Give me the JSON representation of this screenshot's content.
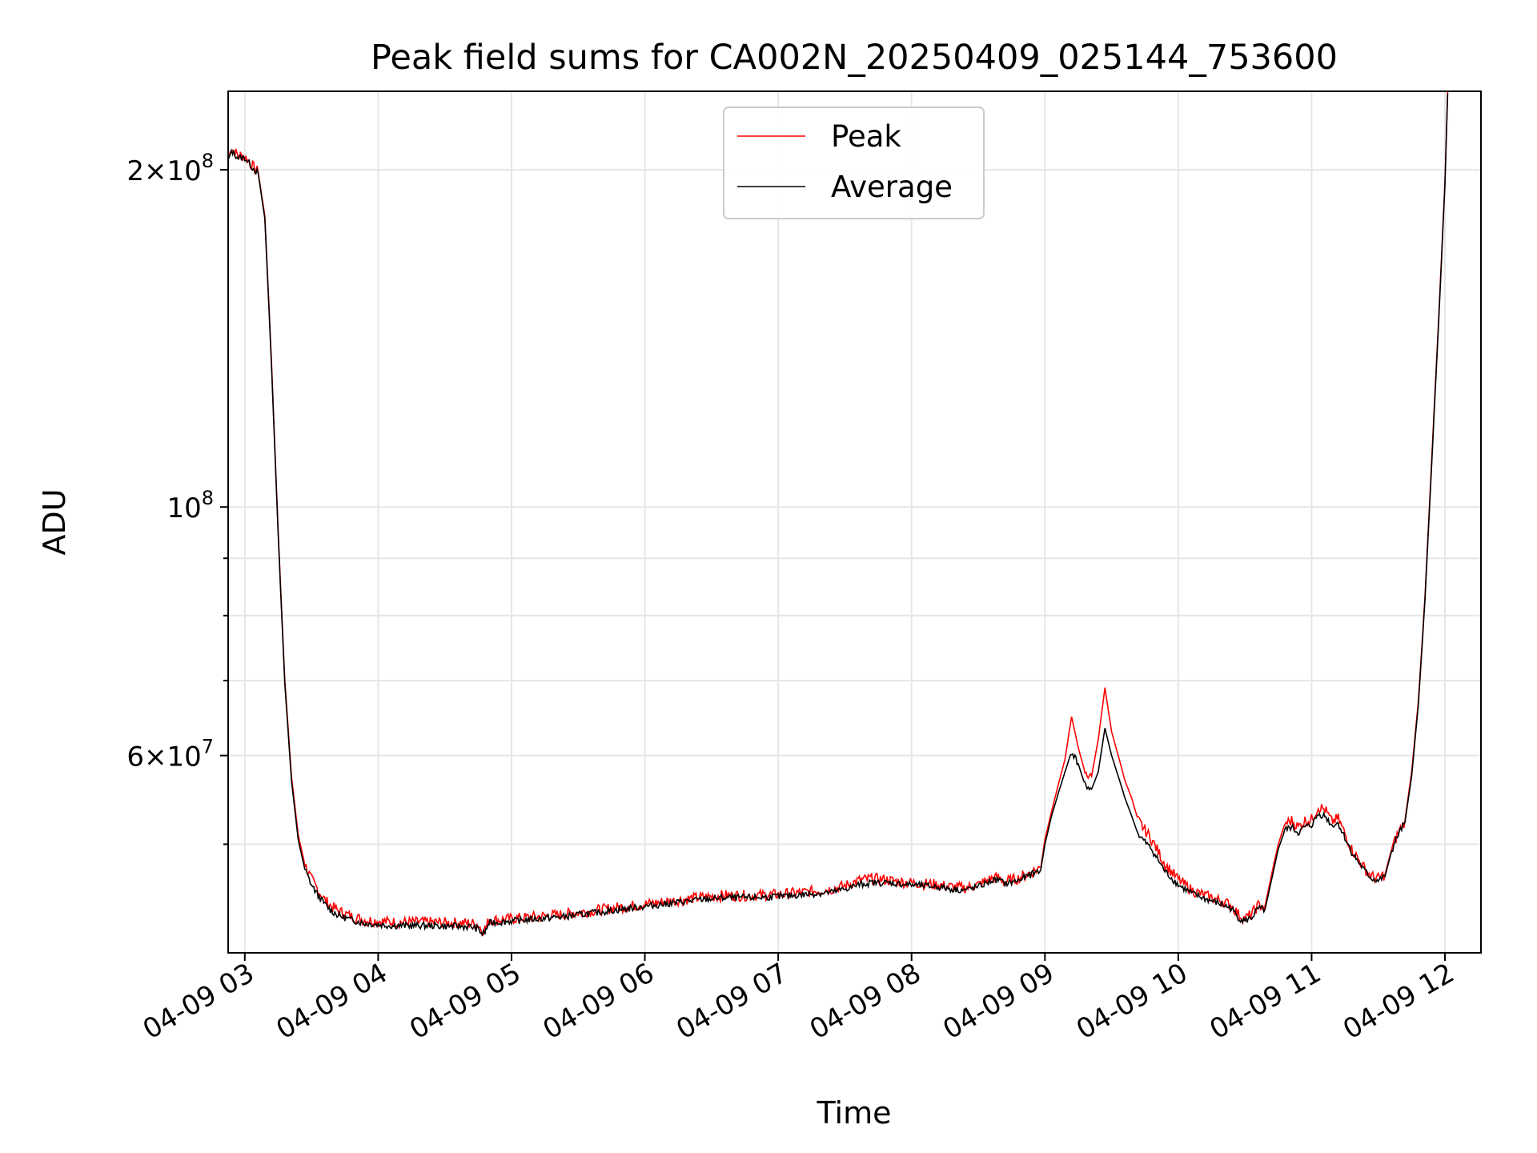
{
  "chart_data": {
    "type": "line",
    "title": "Peak field sums for CA002N_20250409_025144_753600",
    "xlabel": "Time",
    "ylabel": "ADU",
    "yscale": "log",
    "ylim": [
      40000000,
      235000000
    ],
    "xlim_hours": [
      2.875,
      12.27
    ],
    "grid": true,
    "legend_position": "upper center",
    "y_tick_labels": [
      {
        "value": 200000000,
        "mantissa": "2×10",
        "exponent": "8"
      },
      {
        "value": 100000000,
        "mantissa": "10",
        "exponent": "8"
      },
      {
        "value": 60000000,
        "mantissa": "6×10",
        "exponent": "7"
      }
    ],
    "y_minor_ticks": [
      50000000,
      70000000,
      80000000,
      90000000
    ],
    "x_ticks": [
      {
        "hour": 3,
        "label": "04-09 03"
      },
      {
        "hour": 4,
        "label": "04-09 04"
      },
      {
        "hour": 5,
        "label": "04-09 05"
      },
      {
        "hour": 6,
        "label": "04-09 06"
      },
      {
        "hour": 7,
        "label": "04-09 07"
      },
      {
        "hour": 8,
        "label": "04-09 08"
      },
      {
        "hour": 9,
        "label": "04-09 09"
      },
      {
        "hour": 10,
        "label": "04-09 10"
      },
      {
        "hour": 11,
        "label": "04-09 11"
      },
      {
        "hour": 12,
        "label": "04-09 12"
      }
    ],
    "series": [
      {
        "name": "Peak",
        "color": "#ff0000",
        "x_hours": [
          2.875,
          2.9,
          2.95,
          3.0,
          3.05,
          3.1,
          3.15,
          3.2,
          3.25,
          3.3,
          3.35,
          3.4,
          3.45,
          3.5,
          3.55,
          3.6,
          3.65,
          3.7,
          3.8,
          3.9,
          4.0,
          4.1,
          4.2,
          4.3,
          4.4,
          4.5,
          4.6,
          4.7,
          4.75,
          4.78,
          4.8,
          4.83,
          4.86,
          4.9,
          5.0,
          5.2,
          5.4,
          5.6,
          5.8,
          6.0,
          6.2,
          6.4,
          6.6,
          6.8,
          7.0,
          7.2,
          7.4,
          7.5,
          7.6,
          7.7,
          7.8,
          7.9,
          8.0,
          8.1,
          8.2,
          8.3,
          8.4,
          8.5,
          8.6,
          8.65,
          8.7,
          8.8,
          8.9,
          8.97,
          9.0,
          9.05,
          9.1,
          9.15,
          9.2,
          9.25,
          9.3,
          9.35,
          9.4,
          9.45,
          9.5,
          9.55,
          9.6,
          9.65,
          9.7,
          9.8,
          9.9,
          10.0,
          10.1,
          10.2,
          10.3,
          10.4,
          10.45,
          10.5,
          10.55,
          10.6,
          10.65,
          10.7,
          10.75,
          10.8,
          10.85,
          10.9,
          10.95,
          11.0,
          11.05,
          11.1,
          11.15,
          11.2,
          11.3,
          11.4,
          11.45,
          11.5,
          11.55,
          11.6,
          11.65,
          11.7,
          11.75,
          11.8,
          11.85,
          11.9,
          11.95,
          12.0,
          12.02
        ],
        "values": [
          205000000,
          209000000,
          206000000,
          205500000,
          202000000,
          199000000,
          182000000,
          135000000,
          95000000,
          70000000,
          57500000,
          51000000,
          48000000,
          46500000,
          45500000,
          44600000,
          44000000,
          43600000,
          43100000,
          42800000,
          42700000,
          42600000,
          42600000,
          42600000,
          42600000,
          42550000,
          42550000,
          42500000,
          42400000,
          41900000,
          42000000,
          42700000,
          42800000,
          42800000,
          42900000,
          43100000,
          43300000,
          43600000,
          43900000,
          44200000,
          44500000,
          44800000,
          45000000,
          45000000,
          45100000,
          45300000,
          45600000,
          45900000,
          46400000,
          46600000,
          46500000,
          46300000,
          46200000,
          46100000,
          46000000,
          45800000,
          45700000,
          46000000,
          46600000,
          46700000,
          46300000,
          46600000,
          47200000,
          47700000,
          50500000,
          53500000,
          56500000,
          59500000,
          65000000,
          61000000,
          58000000,
          57500000,
          62000000,
          69000000,
          63000000,
          60000000,
          57000000,
          55000000,
          52500000,
          50500000,
          48000000,
          46500000,
          45500000,
          45000000,
          44600000,
          44100000,
          43300000,
          42900000,
          43300000,
          44100000,
          44000000,
          47000000,
          50000000,
          52200000,
          52500000,
          51800000,
          52500000,
          52600000,
          54000000,
          53700000,
          52400000,
          52700000,
          49500000,
          47500000,
          46800000,
          46600000,
          47000000,
          49500000,
          51200000,
          52500000,
          58000000,
          67000000,
          83000000,
          110000000,
          145000000,
          195000000,
          235000000
        ]
      },
      {
        "name": "Average",
        "color": "#000000",
        "x_hours": [
          2.875,
          2.9,
          2.95,
          3.0,
          3.05,
          3.1,
          3.15,
          3.2,
          3.25,
          3.3,
          3.35,
          3.4,
          3.45,
          3.5,
          3.55,
          3.6,
          3.65,
          3.7,
          3.8,
          3.9,
          4.0,
          4.1,
          4.2,
          4.3,
          4.4,
          4.5,
          4.6,
          4.7,
          4.75,
          4.78,
          4.8,
          4.83,
          4.86,
          4.9,
          5.0,
          5.2,
          5.4,
          5.6,
          5.8,
          6.0,
          6.2,
          6.4,
          6.6,
          6.8,
          7.0,
          7.2,
          7.4,
          7.5,
          7.6,
          7.7,
          7.8,
          7.9,
          8.0,
          8.1,
          8.2,
          8.3,
          8.4,
          8.5,
          8.6,
          8.65,
          8.7,
          8.8,
          8.9,
          8.97,
          9.0,
          9.05,
          9.1,
          9.15,
          9.2,
          9.25,
          9.3,
          9.35,
          9.4,
          9.45,
          9.5,
          9.55,
          9.6,
          9.65,
          9.7,
          9.8,
          9.9,
          10.0,
          10.1,
          10.2,
          10.3,
          10.4,
          10.45,
          10.5,
          10.55,
          10.6,
          10.65,
          10.7,
          10.75,
          10.8,
          10.85,
          10.9,
          10.95,
          11.0,
          11.05,
          11.1,
          11.15,
          11.2,
          11.3,
          11.4,
          11.45,
          11.5,
          11.55,
          11.6,
          11.65,
          11.7,
          11.75,
          11.8,
          11.85,
          11.9,
          11.95,
          12.0,
          12.02
        ],
        "values": [
          204000000,
          208000000,
          205000000,
          205000000,
          201500000,
          198500000,
          181000000,
          134000000,
          94500000,
          69500000,
          57000000,
          50500000,
          47500000,
          46000000,
          45000000,
          44200000,
          43600000,
          43200000,
          42800000,
          42500000,
          42400000,
          42300000,
          42300000,
          42300000,
          42300000,
          42250000,
          42250000,
          42200000,
          42000000,
          41600000,
          41700000,
          42500000,
          42600000,
          42600000,
          42700000,
          42900000,
          43100000,
          43400000,
          43700000,
          44000000,
          44300000,
          44600000,
          44800000,
          44800000,
          44900000,
          45100000,
          45300000,
          45600000,
          46000000,
          46200000,
          46200000,
          46100000,
          46000000,
          45900000,
          45800000,
          45600000,
          45500000,
          45800000,
          46400000,
          46500000,
          46100000,
          46400000,
          47000000,
          47500000,
          50000000,
          53000000,
          55500000,
          58000000,
          60500000,
          59000000,
          56500000,
          56000000,
          58000000,
          63500000,
          60000000,
          57500000,
          55000000,
          53000000,
          51000000,
          49500000,
          47300000,
          46000000,
          45200000,
          44700000,
          44300000,
          43800000,
          43000000,
          42700000,
          43000000,
          43800000,
          43700000,
          46500000,
          49500000,
          51500000,
          51800000,
          51200000,
          51800000,
          52000000,
          53200000,
          53000000,
          52000000,
          52200000,
          49200000,
          47300000,
          46600000,
          46400000,
          46800000,
          49300000,
          51000000,
          52300000,
          57500000,
          66500000,
          82500000,
          109000000,
          144000000,
          194000000,
          234000000
        ]
      }
    ]
  }
}
